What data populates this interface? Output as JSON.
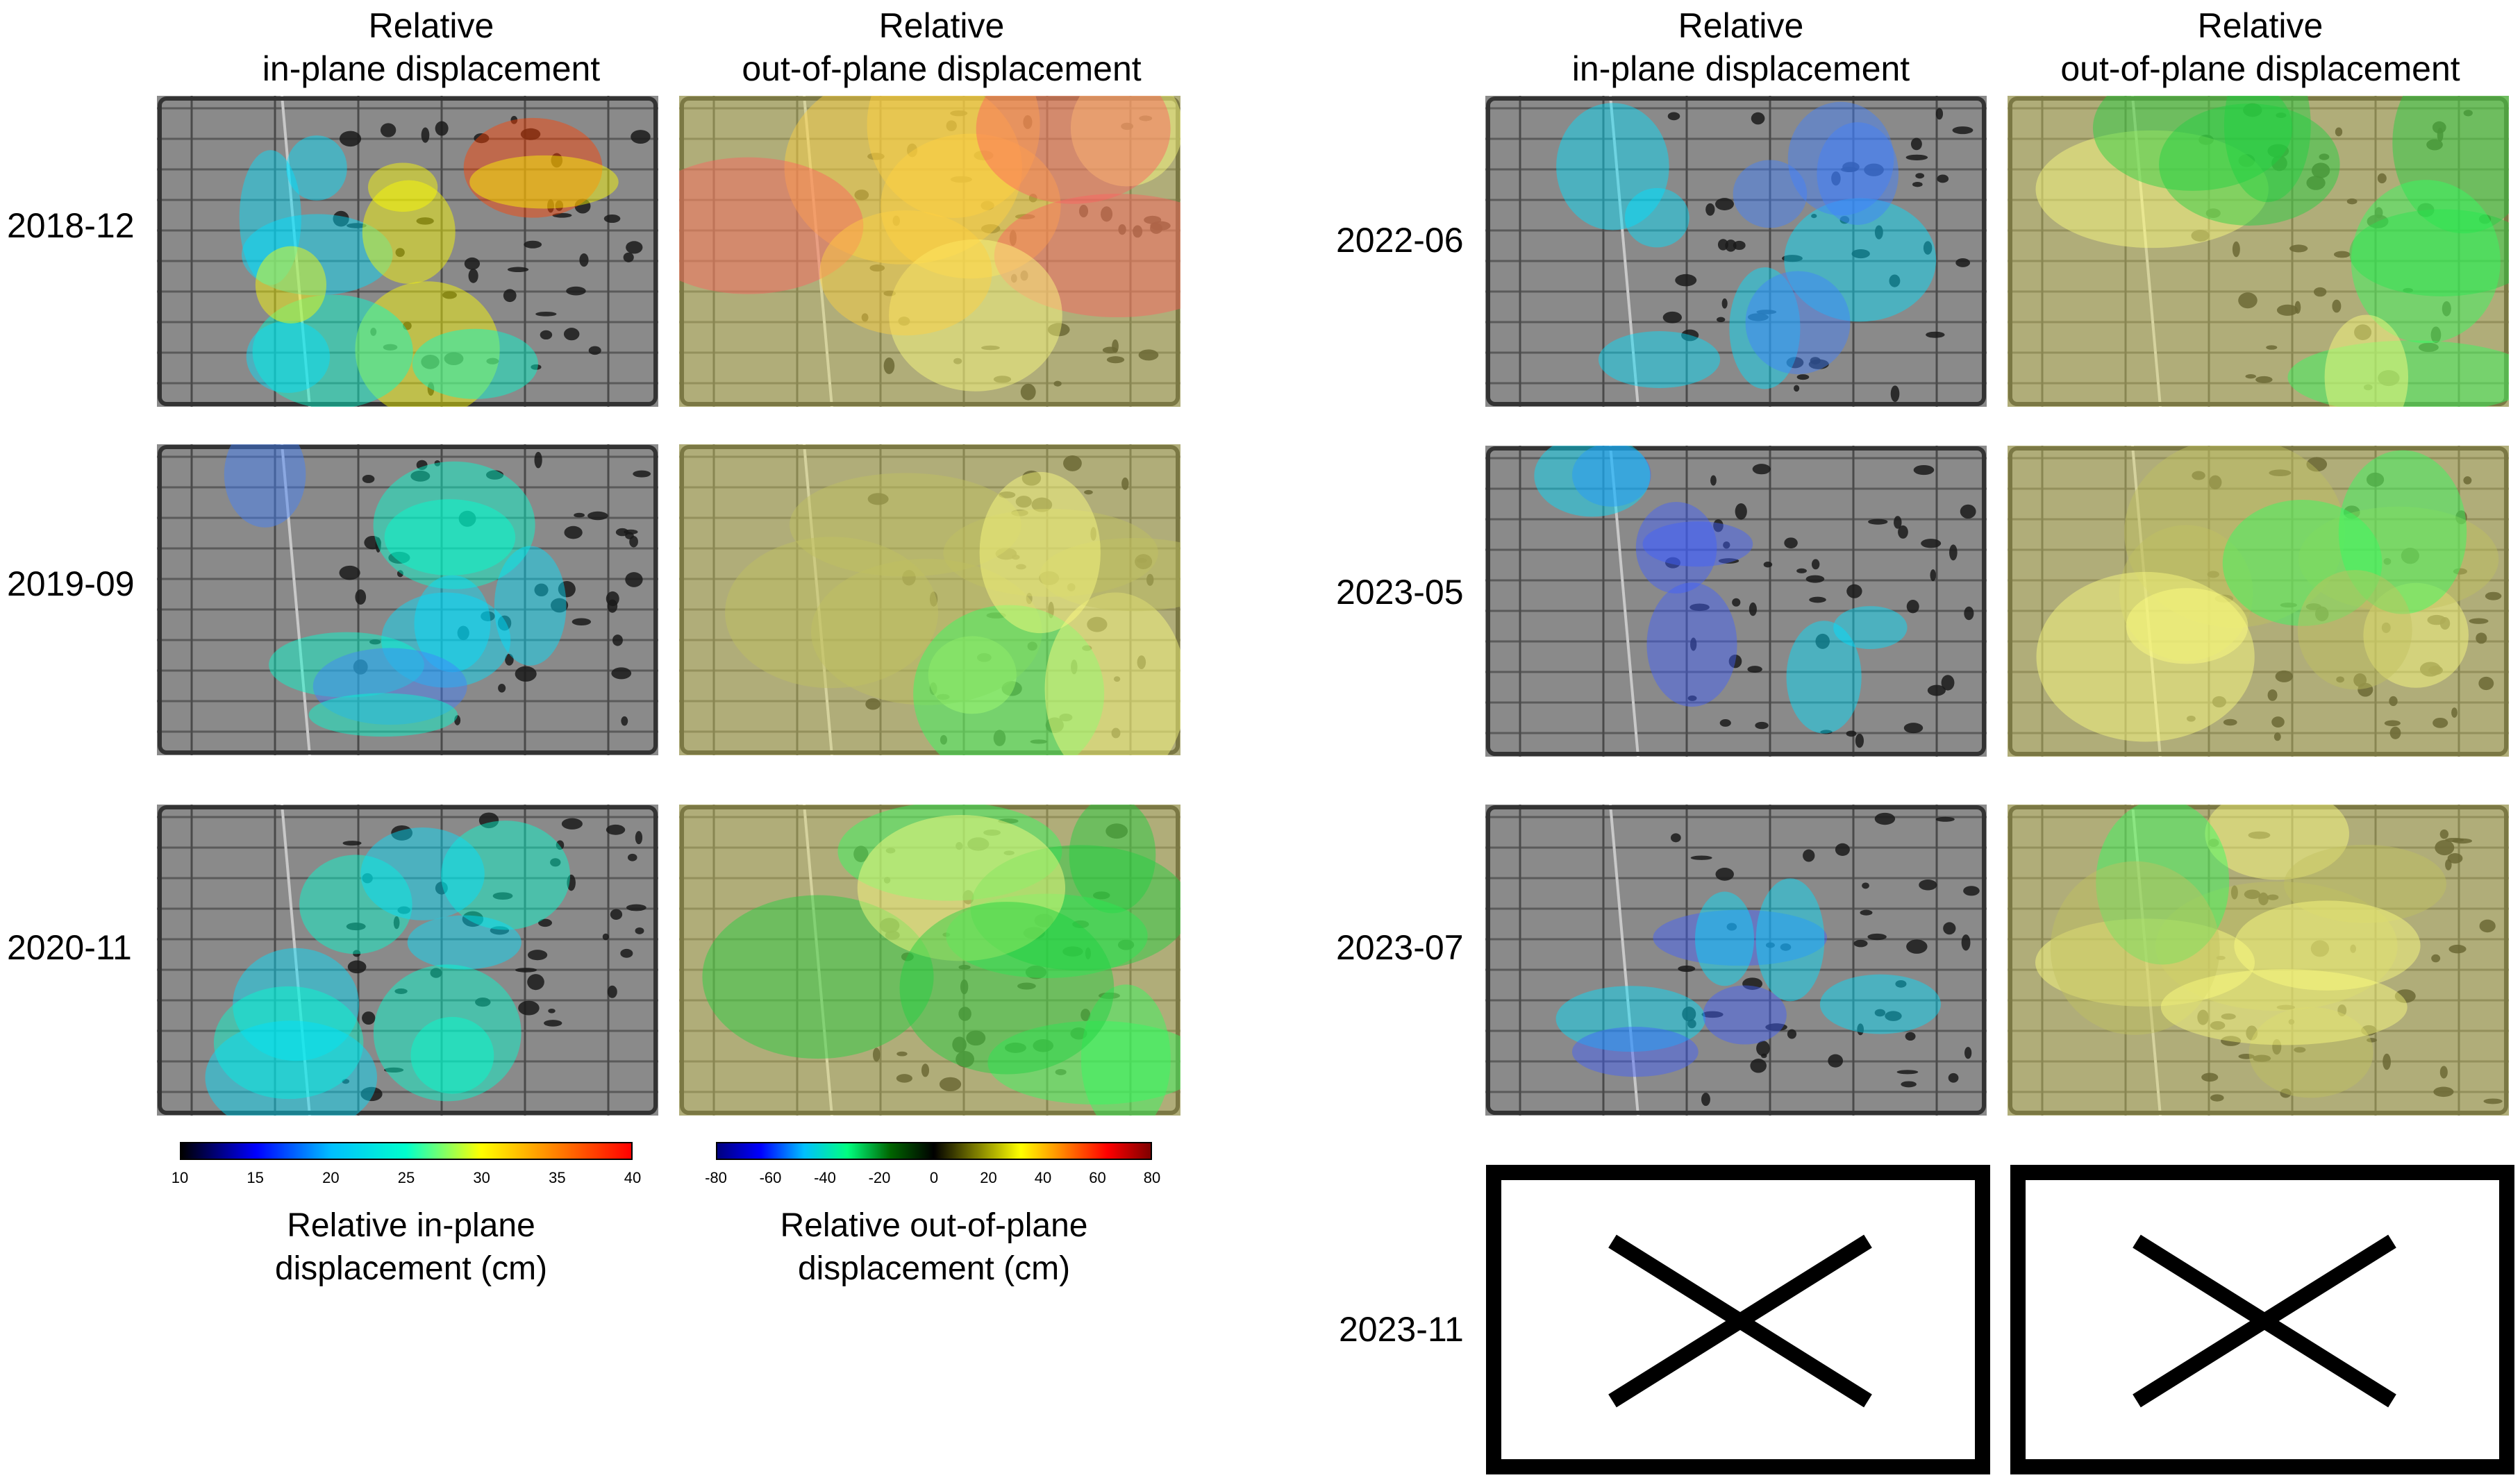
{
  "left_columns": {
    "in_plane": [
      "Relative",
      "in-plane displacement"
    ],
    "out_of_plane": [
      "Relative",
      "out-of-plane displacement"
    ]
  },
  "right_columns": {
    "in_plane": [
      "Relative",
      "in-plane displacement"
    ],
    "out_of_plane": [
      "Relative",
      "out-of-plane displacement"
    ]
  },
  "left_rows": [
    {
      "date": "2018-12",
      "in_plane_level": "high",
      "out_of_plane_level": "positive"
    },
    {
      "date": "2019-09",
      "in_plane_level": "medium",
      "out_of_plane_level": "mixed"
    },
    {
      "date": "2020-11",
      "in_plane_level": "medium",
      "out_of_plane_level": "negative"
    }
  ],
  "right_rows": [
    {
      "date": "2022-06",
      "in_plane_level": "medium",
      "out_of_plane_level": "negative"
    },
    {
      "date": "2023-05",
      "in_plane_level": "low",
      "out_of_plane_level": "mixed"
    },
    {
      "date": "2023-07",
      "in_plane_level": "low",
      "out_of_plane_level": "mixed"
    },
    {
      "date": "2023-11",
      "status": "no data"
    }
  ],
  "colorbars": {
    "in_plane": {
      "ticks": [
        "10",
        "15",
        "20",
        "25",
        "30",
        "35",
        "40"
      ],
      "title": [
        "Relative in-plane",
        "displacement (cm)"
      ],
      "colors": [
        "#000000",
        "#0000ff",
        "#00bfff",
        "#00ffcc",
        "#ffff00",
        "#ff8000",
        "#ff0000"
      ]
    },
    "out_of_plane": {
      "ticks": [
        "-80",
        "-60",
        "-40",
        "-20",
        "0",
        "20",
        "40",
        "60",
        "80"
      ],
      "title": [
        "Relative out-of-plane",
        "displacement (cm)"
      ],
      "colors": [
        "#00007f",
        "#0000ff",
        "#00bfff",
        "#00ff80",
        "#006400",
        "#000000",
        "#808000",
        "#ffff00",
        "#ff8000",
        "#ff0000",
        "#7f0000"
      ]
    }
  }
}
